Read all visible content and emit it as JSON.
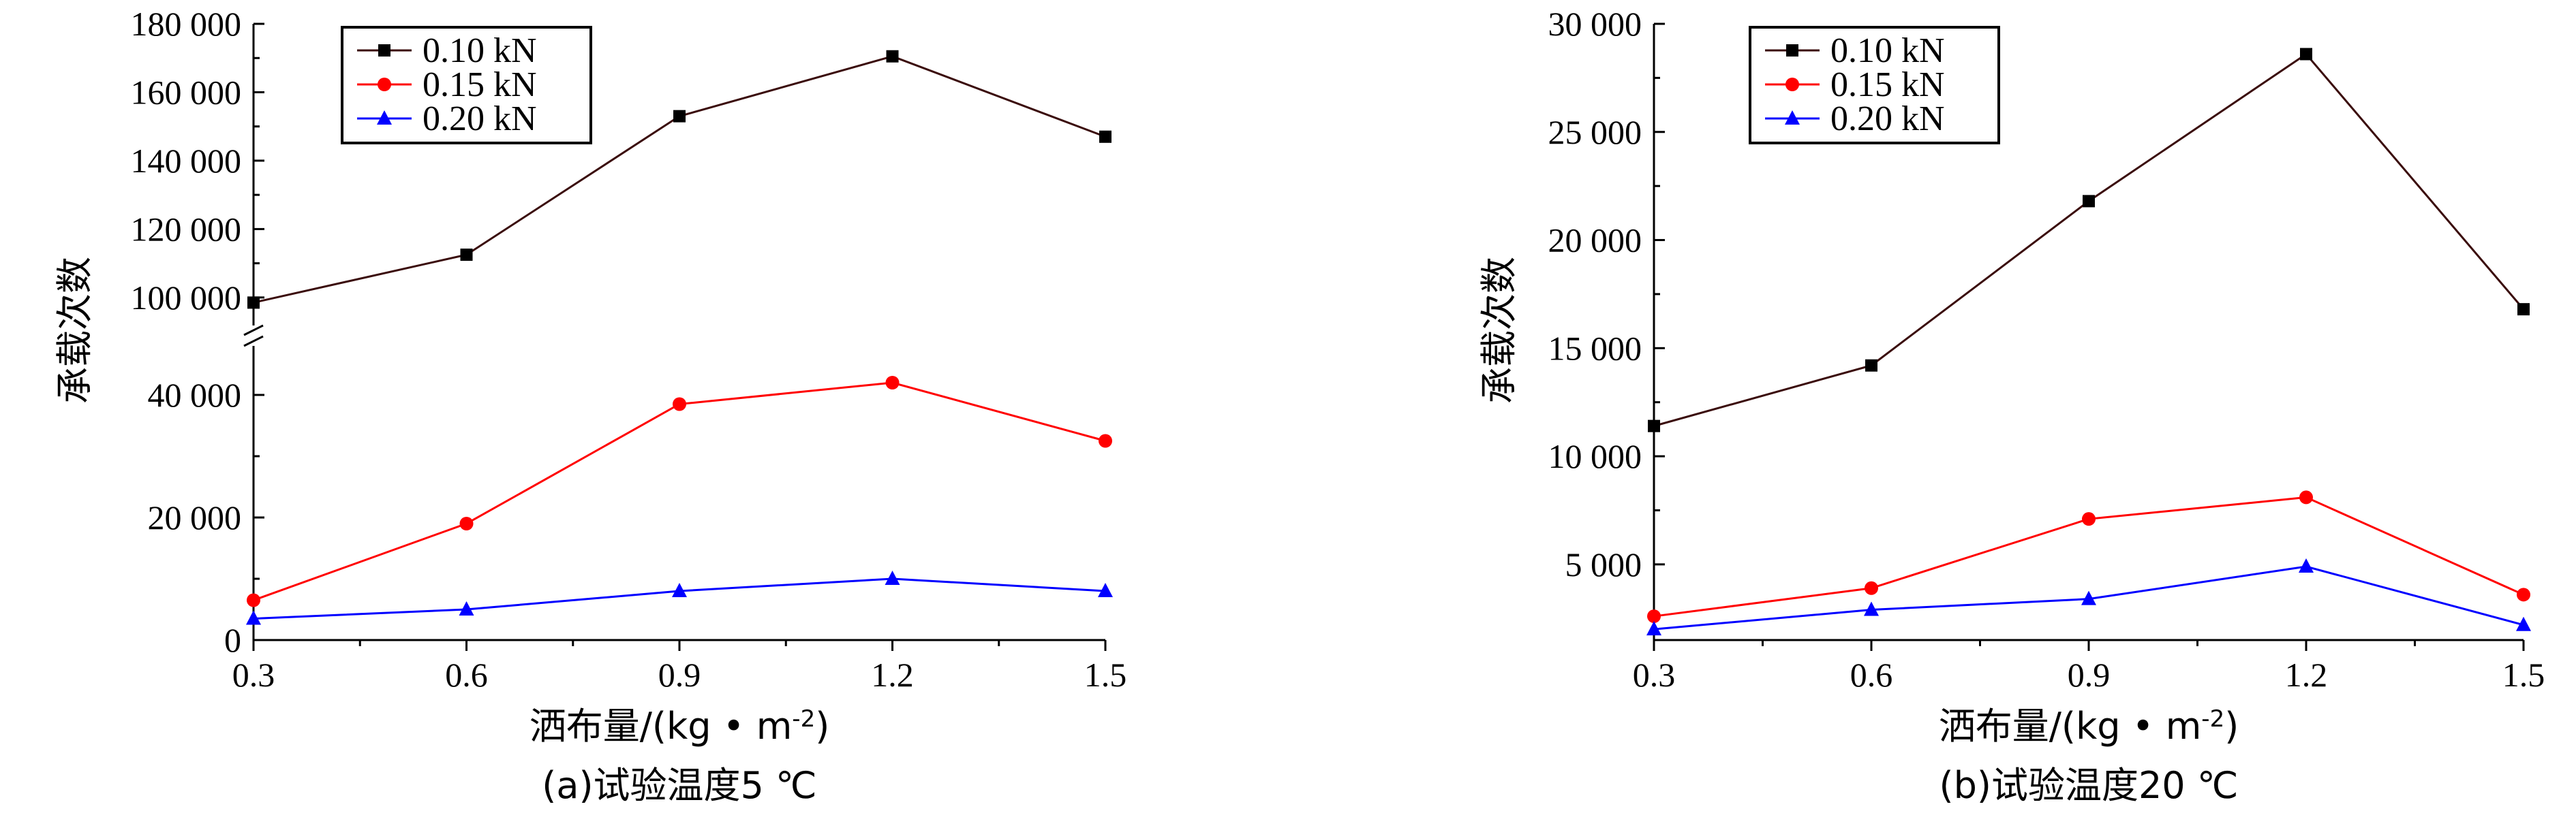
{
  "chart_data": [
    {
      "type": "line",
      "caption": "(a)试验温度5 ℃",
      "xlabel": "洒布量/(kg • m",
      "xlabel_sup": "-2",
      "xlabel_end": ")",
      "ylabel": "承载次数",
      "x": [
        0.3,
        0.6,
        0.9,
        1.2,
        1.5
      ],
      "x_ticks": [
        "0.3",
        "0.6",
        "0.9",
        "1.2",
        "1.5"
      ],
      "ylim": [
        0,
        180000
      ],
      "y_axis_break": {
        "lower": [
          0,
          50000
        ],
        "upper": [
          95000,
          180000
        ]
      },
      "y_ticks": [
        "0",
        "20 000",
        "40 000",
        "100 000",
        "120 000",
        "140 000",
        "160 000",
        "180 000"
      ],
      "legend_position": "top-left",
      "series": [
        {
          "name": "0.10 kN",
          "marker": "square",
          "color": "#000000",
          "line_color": "#3a0b0b",
          "values": [
            98500,
            112500,
            153000,
            170500,
            147000
          ]
        },
        {
          "name": "0.15 kN",
          "marker": "circle",
          "color": "#ff0000",
          "line_color": "#ff0000",
          "values": [
            6500,
            19000,
            38500,
            42000,
            32500
          ]
        },
        {
          "name": "0.20 kN",
          "marker": "triangle",
          "color": "#0000ff",
          "line_color": "#0000ff",
          "values": [
            3500,
            5000,
            8000,
            10000,
            8000
          ]
        }
      ]
    },
    {
      "type": "line",
      "caption": "(b)试验温度20 ℃",
      "xlabel": "洒布量/(kg • m",
      "xlabel_sup": "-2",
      "xlabel_end": ")",
      "ylabel": "承载次数",
      "x": [
        0.3,
        0.6,
        0.9,
        1.2,
        1.5
      ],
      "x_ticks": [
        "0.3",
        "0.6",
        "0.9",
        "1.2",
        "1.5"
      ],
      "ylim": [
        1500,
        30000
      ],
      "y_ticks": [
        "5 000",
        "10 000",
        "15 000",
        "20 000",
        "25 000",
        "30 000"
      ],
      "legend_position": "top-left",
      "series": [
        {
          "name": "0.10 kN",
          "marker": "square",
          "color": "#000000",
          "line_color": "#3a0b0b",
          "values": [
            11400,
            14200,
            21800,
            28600,
            16800
          ]
        },
        {
          "name": "0.15 kN",
          "marker": "circle",
          "color": "#ff0000",
          "line_color": "#ff0000",
          "values": [
            2600,
            3900,
            7100,
            8100,
            3600
          ]
        },
        {
          "name": "0.20 kN",
          "marker": "triangle",
          "color": "#0000ff",
          "line_color": "#0000ff",
          "values": [
            2000,
            2900,
            3400,
            4900,
            2200
          ]
        }
      ]
    }
  ]
}
